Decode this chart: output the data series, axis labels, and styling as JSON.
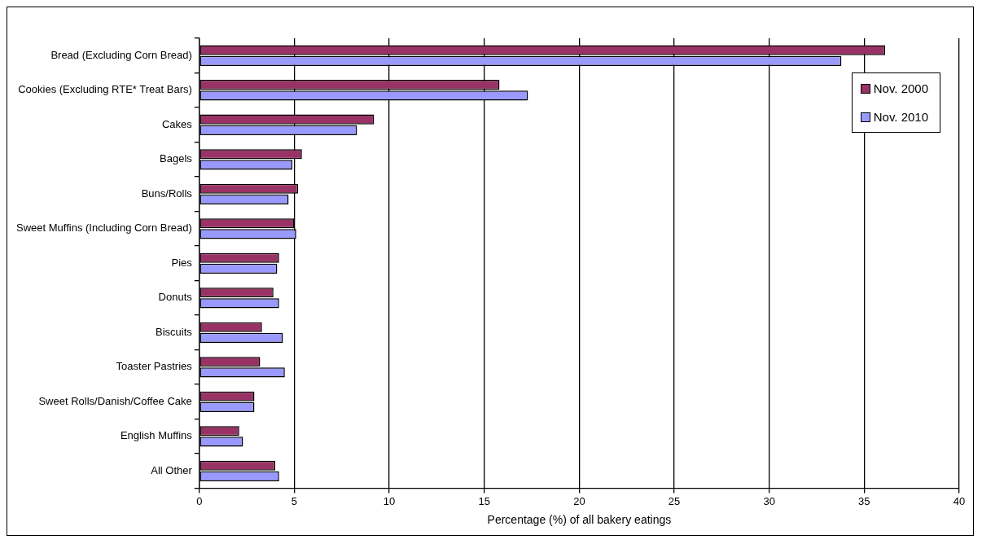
{
  "chart_data": {
    "type": "bar",
    "orientation": "horizontal",
    "xlabel": "Percentage (%) of all bakery eatings",
    "categories": [
      "Bread (Excluding Corn Bread)",
      "Cookies (Excluding RTE* Treat Bars)",
      "Cakes",
      "Bagels",
      "Buns/Rolls",
      "Sweet Muffins (Including Corn Bread)",
      "Pies",
      "Donuts",
      "Biscuits",
      "Toaster Pastries",
      "Sweet Rolls/Danish/Coffee Cake",
      "English Muffins",
      "All Other"
    ],
    "series": [
      {
        "name": "Nov. 2000",
        "color": "#993366",
        "values": [
          36.1,
          15.8,
          9.2,
          5.4,
          5.2,
          5.0,
          4.2,
          3.9,
          3.3,
          3.2,
          2.9,
          2.1,
          4.0
        ]
      },
      {
        "name": "Nov. 2010",
        "color": "#9999ff",
        "values": [
          33.8,
          17.3,
          8.3,
          4.9,
          4.7,
          5.1,
          4.1,
          4.2,
          4.4,
          4.5,
          2.9,
          2.3,
          4.2
        ]
      }
    ],
    "xlim": [
      0,
      40
    ],
    "xticks": [
      0,
      5,
      10,
      15,
      20,
      25,
      30,
      35,
      40
    ],
    "grid": "x",
    "legend": "top right"
  }
}
